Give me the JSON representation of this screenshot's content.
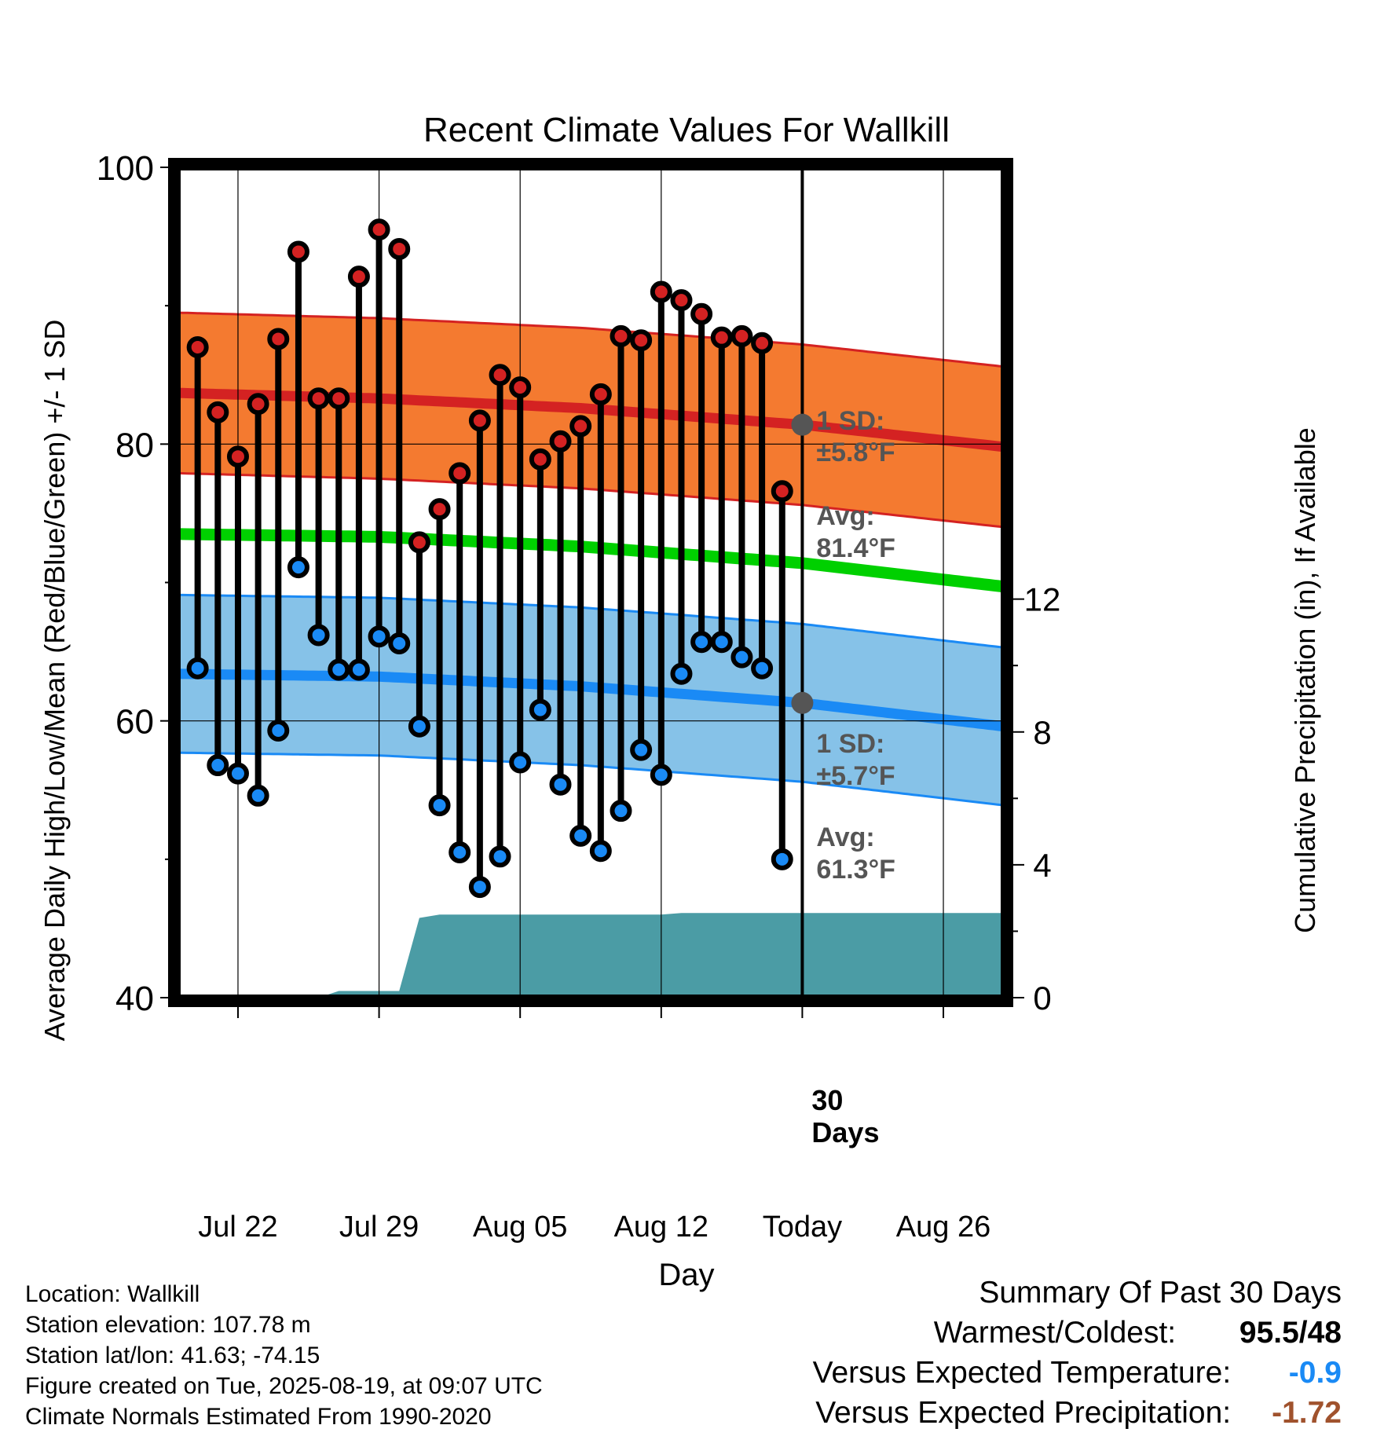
{
  "chart_data": {
    "type": "line",
    "title": "Recent Climate Values For Wallkill",
    "xlabel": "Day",
    "ylabel": "Average Daily High/Low/Mean (Red/Blue/Green) +/- 1 SD",
    "ylabel_right": "Cumulative Precipitation (in), If Available",
    "ylim": [
      40,
      100
    ],
    "ylim_right": [
      0,
      25
    ],
    "y_ticks": [
      "100",
      "80",
      "60",
      "40"
    ],
    "y_ticks_right": [
      "0",
      "4",
      "8",
      "12"
    ],
    "x_range": [
      "2025-07-19",
      "2025-08-29"
    ],
    "x_ticks": [
      {
        "date": "2025-07-22",
        "label": "Jul 22"
      },
      {
        "date": "2025-07-29",
        "label": "Jul 29"
      },
      {
        "date": "2025-08-05",
        "label": "Aug 05"
      },
      {
        "date": "2025-08-12",
        "label": "Aug 12"
      },
      {
        "date": "2025-08-19",
        "label": "Today"
      },
      {
        "date": "2025-08-26",
        "label": "Aug 26"
      }
    ],
    "today": "2025-08-19",
    "daily": {
      "dates": [
        "2025-07-20",
        "2025-07-21",
        "2025-07-22",
        "2025-07-23",
        "2025-07-24",
        "2025-07-25",
        "2025-07-26",
        "2025-07-27",
        "2025-07-28",
        "2025-07-29",
        "2025-07-30",
        "2025-07-31",
        "2025-08-01",
        "2025-08-02",
        "2025-08-03",
        "2025-08-04",
        "2025-08-05",
        "2025-08-06",
        "2025-08-07",
        "2025-08-08",
        "2025-08-09",
        "2025-08-10",
        "2025-08-11",
        "2025-08-12",
        "2025-08-13",
        "2025-08-14",
        "2025-08-15",
        "2025-08-16",
        "2025-08-17",
        "2025-08-18"
      ],
      "high": [
        87.0,
        82.3,
        79.1,
        82.9,
        87.6,
        93.9,
        83.3,
        83.3,
        92.1,
        95.5,
        94.1,
        72.9,
        75.3,
        77.9,
        81.7,
        85.0,
        84.1,
        78.9,
        80.2,
        81.3,
        83.6,
        87.8,
        87.5,
        91.0,
        90.4,
        89.4,
        87.7,
        87.8,
        87.3,
        76.6
      ],
      "low": [
        63.8,
        56.8,
        56.2,
        54.6,
        59.3,
        71.1,
        66.2,
        63.7,
        63.7,
        66.1,
        65.6,
        59.6,
        53.9,
        50.5,
        48.0,
        50.2,
        57.0,
        60.8,
        55.4,
        51.7,
        50.6,
        53.5,
        57.9,
        56.1,
        63.4,
        65.7,
        65.7,
        64.6,
        63.8,
        50.0
      ],
      "color_high": "#d42222",
      "color_low": "#1a8af5"
    },
    "normals": {
      "dates": [
        "2025-07-19",
        "2025-07-29",
        "2025-08-08",
        "2025-08-19",
        "2025-08-29"
      ],
      "high_avg": [
        83.7,
        83.3,
        82.6,
        81.4,
        79.8
      ],
      "high_sd": 5.8,
      "low_avg": [
        63.4,
        63.2,
        62.5,
        61.3,
        59.6
      ],
      "low_sd": 5.7,
      "mean": [
        73.5,
        73.3,
        72.6,
        71.4,
        69.7
      ],
      "color_high": "#d42222",
      "color_high_band": "#f47a30",
      "color_low": "#1a8af5",
      "color_low_band": "#86c2e8",
      "color_mean": "#00d000"
    },
    "annotations": {
      "high_sd_label": "1 SD:",
      "high_sd_value": "±5.8°F",
      "high_avg_label": "Avg:",
      "high_avg_value": "81.4°F",
      "low_sd_label": "1 SD:",
      "low_sd_value": "±5.7°F",
      "low_avg_label": "Avg:",
      "low_avg_value": "61.3°F",
      "days_number": "30",
      "days_word": "Days",
      "text_color": "#555555"
    },
    "precip": {
      "color": "#4b9ca5",
      "points": [
        [
          "2025-07-19",
          0
        ],
        [
          "2025-07-26",
          0
        ],
        [
          "2025-07-27",
          0.2
        ],
        [
          "2025-07-30",
          0.2
        ],
        [
          "2025-07-31",
          2.4
        ],
        [
          "2025-08-01",
          2.5
        ],
        [
          "2025-08-12",
          2.5
        ],
        [
          "2025-08-13",
          2.55
        ],
        [
          "2025-08-29",
          2.55
        ]
      ]
    }
  },
  "footer": {
    "location": "Location: Wallkill",
    "elevation": "Station elevation: 107.78 m",
    "latlon": "Station lat/lon: 41.63; -74.15",
    "created": "Figure created on Tue, 2025-08-19, at 09:07 UTC",
    "normals": "Climate Normals Estimated From 1990-2020"
  },
  "summary": {
    "title": "Summary Of Past 30 Days",
    "warmest_label": "Warmest/Coldest:",
    "warmest_value": "95.5/48",
    "temp_label": "Versus Expected Temperature:",
    "temp_value": "-0.9",
    "temp_color": "#1a8af5",
    "precip_label": "Versus Expected Precipitation:",
    "precip_value": "-1.72",
    "precip_color": "#a0522d"
  }
}
